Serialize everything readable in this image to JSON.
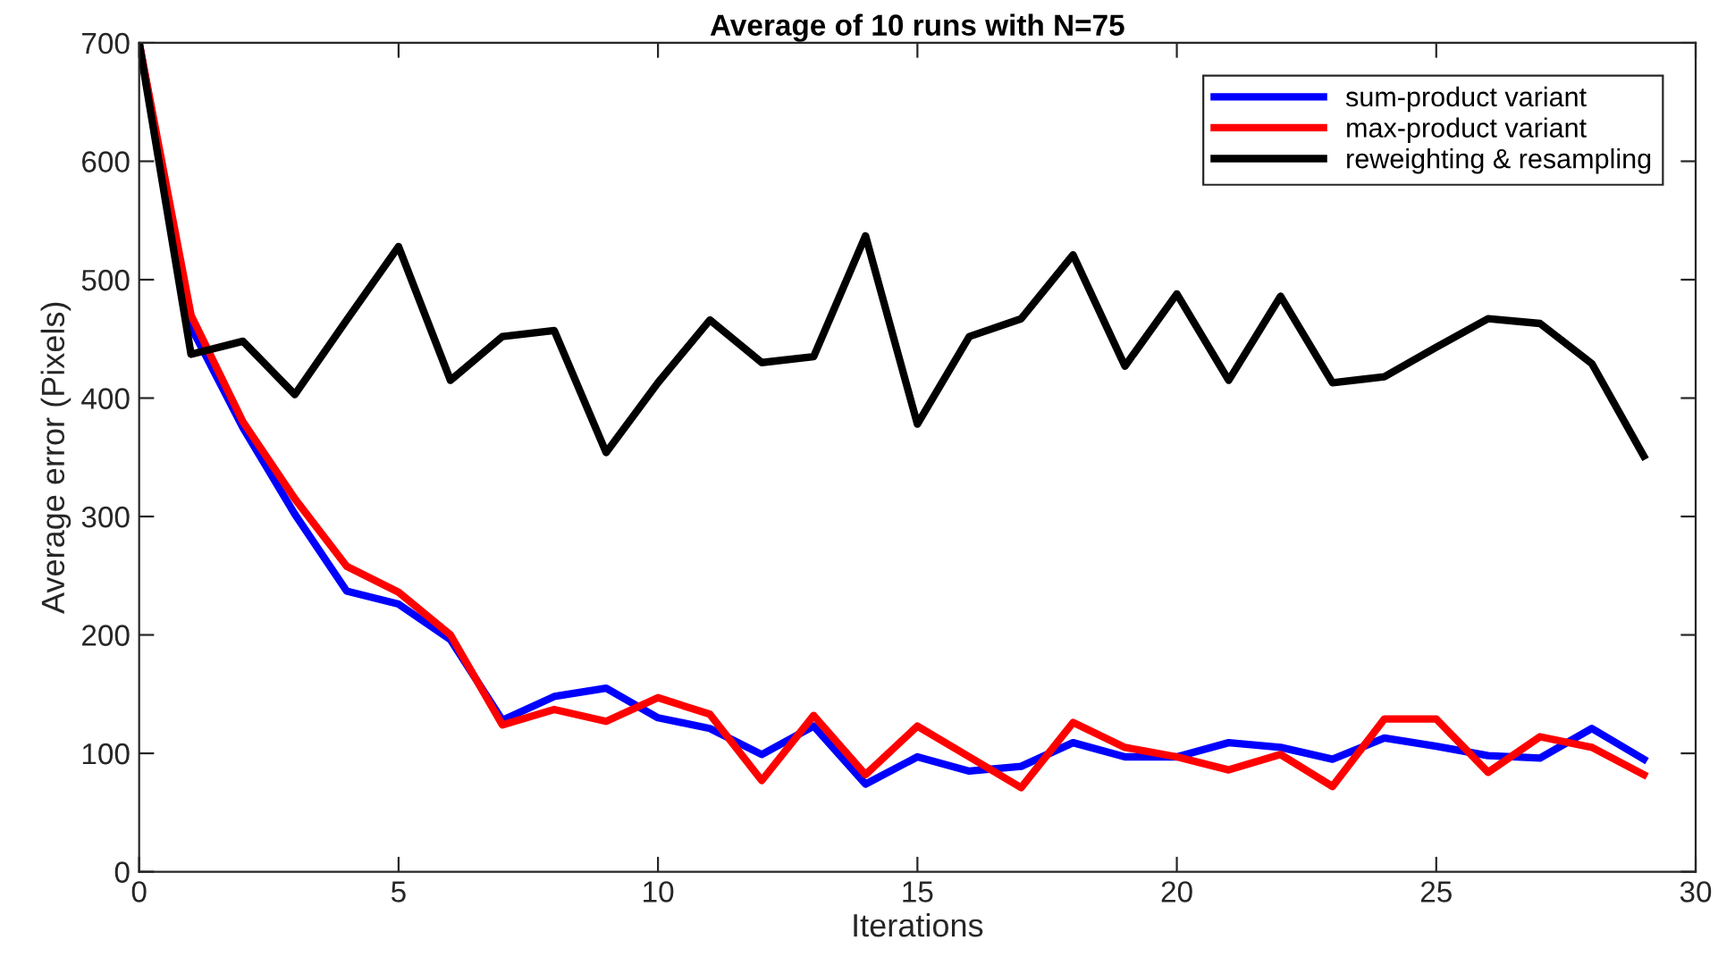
{
  "chart_data": {
    "type": "line",
    "title": "Average of 10 runs with N=75",
    "xlabel": "Iterations",
    "ylabel": "Average error (Pixels)",
    "x": [
      0,
      1,
      2,
      3,
      4,
      5,
      6,
      7,
      8,
      9,
      10,
      11,
      12,
      13,
      14,
      15,
      16,
      17,
      18,
      19,
      20,
      21,
      22,
      23,
      24,
      25,
      26,
      27,
      28,
      29
    ],
    "series": [
      {
        "name": "sum-product variant",
        "color": "#0000ff",
        "values": [
          700,
          460,
          375,
          302,
          237,
          226,
          196,
          128,
          148,
          155,
          130,
          121,
          99,
          123,
          74,
          97,
          85,
          89,
          109,
          97,
          97,
          109,
          105,
          95,
          113,
          106,
          98,
          96,
          121,
          95
        ]
      },
      {
        "name": "max-product variant",
        "color": "#ff0000",
        "values": [
          700,
          470,
          380,
          315,
          258,
          236,
          200,
          124,
          137,
          127,
          147,
          133,
          77,
          132,
          82,
          123,
          97,
          71,
          126,
          105,
          97,
          86,
          99,
          72,
          129,
          129,
          84,
          114,
          105,
          82
        ]
      },
      {
        "name": "reweighting & resampling",
        "color": "#000000",
        "values": [
          700,
          437,
          448,
          403,
          466,
          528,
          415,
          452,
          457,
          354,
          413,
          466,
          430,
          435,
          537,
          378,
          452,
          467,
          521,
          427,
          488,
          415,
          486,
          413,
          418,
          443,
          467,
          463,
          429,
          351
        ]
      }
    ],
    "xlim": [
      0,
      30
    ],
    "xticks": [
      0,
      5,
      10,
      15,
      20,
      25,
      30
    ],
    "ylim": [
      0,
      700
    ],
    "yticks": [
      0,
      100,
      200,
      300,
      400,
      500,
      600,
      700
    ],
    "grid": false,
    "legend": "top right",
    "marker": "none",
    "line_style": "solid"
  }
}
